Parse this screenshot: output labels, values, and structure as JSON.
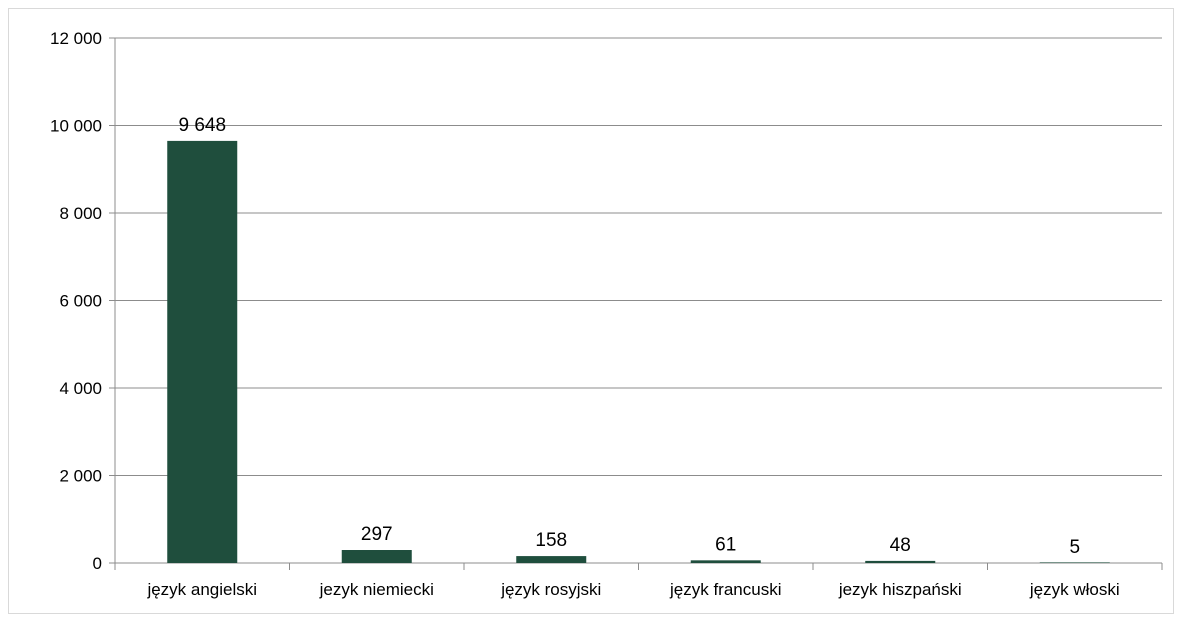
{
  "chart_data": {
    "type": "bar",
    "title": "",
    "xlabel": "",
    "ylabel": "",
    "categories": [
      "język angielski",
      "jezyk niemiecki",
      "język rosyjski",
      "język francuski",
      "jezyk hiszpański",
      "język włoski"
    ],
    "values": [
      9648,
      297,
      158,
      61,
      48,
      5
    ],
    "data_labels": [
      "9 648",
      "297",
      "158",
      "61",
      "48",
      "5"
    ],
    "ylim": [
      0,
      12000
    ],
    "yticks": [
      0,
      2000,
      4000,
      6000,
      8000,
      10000,
      12000
    ],
    "ytick_labels": [
      "0",
      "2 000",
      "4 000",
      "6 000",
      "8 000",
      "10 000",
      "12 000"
    ],
    "grid": true,
    "legend": "none",
    "bar_color": "#1f4e3d"
  }
}
